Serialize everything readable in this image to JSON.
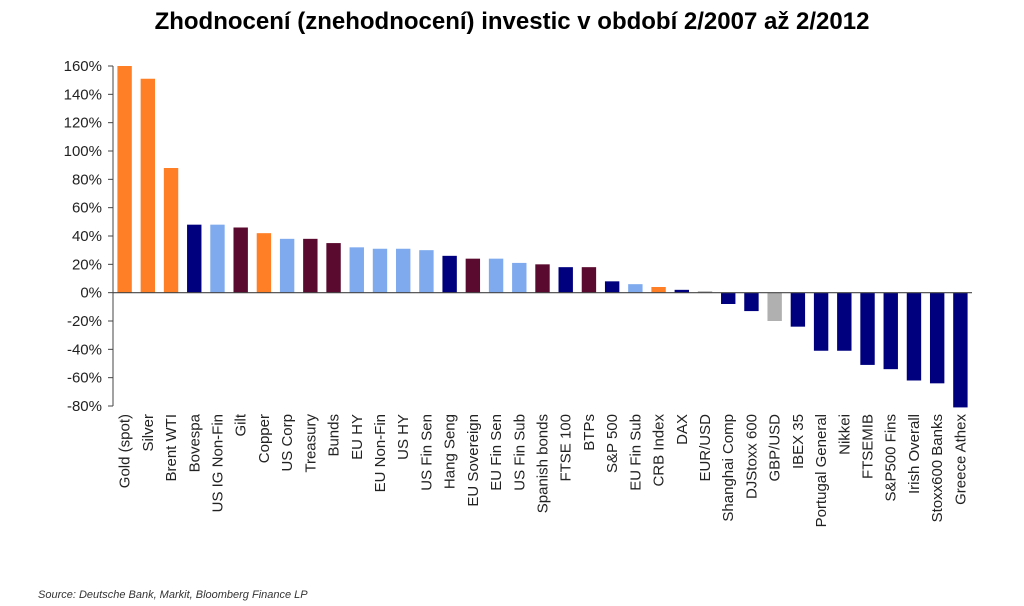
{
  "chart_data": {
    "type": "bar",
    "title": "Zhodnocení (znehodnocení) investic v období 2/2007 až 2/2012",
    "ylim": [
      -80,
      160
    ],
    "yticks": [
      160,
      140,
      120,
      100,
      80,
      60,
      40,
      20,
      0,
      -20,
      -40,
      -60,
      -80
    ],
    "ytick_labels": [
      "160%",
      "140%",
      "120%",
      "100%",
      "80%",
      "60%",
      "40%",
      "20%",
      "0%",
      "-20%",
      "-40%",
      "-60%",
      "-80%"
    ],
    "grid": false,
    "categories": [
      "Gold (spot)",
      "Silver",
      "Brent WTI",
      "Bovespa",
      "US IG Non-Fin",
      "Gilt",
      "Copper",
      "US Corp",
      "Treasury",
      "Bunds",
      "EU HY",
      "EU Non-Fin",
      "US HY",
      "US Fin Sen",
      "Hang Seng",
      "EU Sovereign",
      "EU Fin Sen",
      "US Fin Sub",
      "Spanish bonds",
      "FTSE 100",
      "BTPs",
      "S&P 500",
      "EU Fin Sub",
      "CRB Index",
      "DAX",
      "EUR/USD",
      "Shanghai Comp",
      "DJStoxx 600",
      "GBP/USD",
      "IBEX 35",
      "Portugal General",
      "Nikkei",
      "FTSEMIB",
      "S&P500 Fins",
      "Irish Overall",
      "Stoxx600 Banks",
      "Greece Athex"
    ],
    "values": [
      160,
      151,
      88,
      48,
      48,
      46,
      42,
      38,
      38,
      35,
      32,
      31,
      31,
      30,
      26,
      24,
      24,
      21,
      20,
      18,
      18,
      8,
      6,
      4,
      2,
      1,
      -8,
      -13,
      -20,
      -24,
      -41,
      -41,
      -51,
      -54,
      -62,
      -64,
      -81
    ],
    "bar_colors": [
      "#ff7f27",
      "#ff7f27",
      "#ff7f27",
      "#00007f",
      "#7faaee",
      "#5a0a2e",
      "#ff7f27",
      "#7faaee",
      "#5a0a2e",
      "#5a0a2e",
      "#7faaee",
      "#7faaee",
      "#7faaee",
      "#7faaee",
      "#00007f",
      "#5a0a2e",
      "#7faaee",
      "#7faaee",
      "#5a0a2e",
      "#00007f",
      "#5a0a2e",
      "#00007f",
      "#7faaee",
      "#ff7f27",
      "#00007f",
      "#b0b0b0",
      "#00007f",
      "#00007f",
      "#b0b0b0",
      "#00007f",
      "#00007f",
      "#00007f",
      "#00007f",
      "#00007f",
      "#00007f",
      "#00007f",
      "#00007f"
    ]
  },
  "source": "Source: Deutsche Bank, Markit, Bloomberg Finance LP"
}
